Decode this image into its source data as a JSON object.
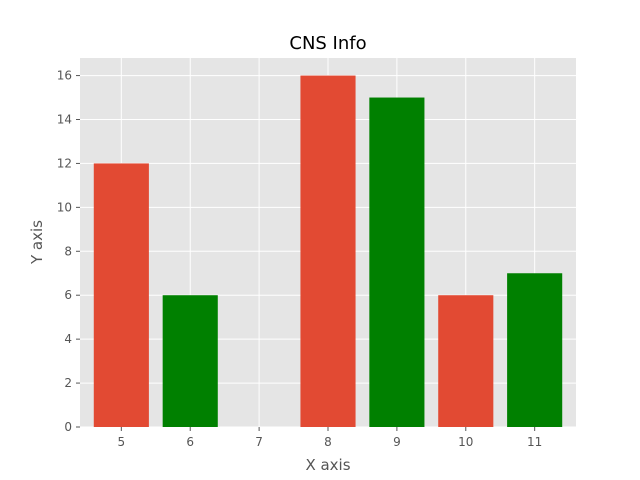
{
  "chart_data": {
    "type": "bar",
    "title": "CNS Info",
    "xlabel": "X axis",
    "ylabel": "Y axis",
    "categories": [
      "5",
      "6",
      "7",
      "8",
      "9",
      "10",
      "11"
    ],
    "values": [
      12,
      6,
      null,
      16,
      15,
      6,
      7
    ],
    "bar_colors": [
      "#e24a33",
      "#008000",
      null,
      "#e24a33",
      "#008000",
      "#e24a33",
      "#008000"
    ],
    "yticks": [
      "0",
      "2",
      "4",
      "6",
      "8",
      "10",
      "12",
      "14",
      "16"
    ],
    "ylim": [
      0,
      16.8
    ],
    "grid": true,
    "legend": false,
    "background_color": "#e5e5e5",
    "grid_color": "#ffffff"
  }
}
